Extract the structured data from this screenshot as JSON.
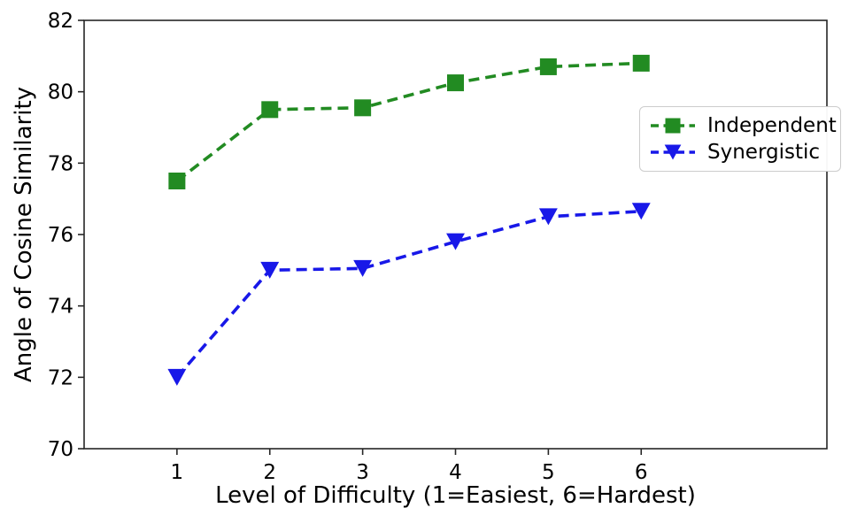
{
  "chart_data": {
    "type": "line",
    "x": [
      1,
      2,
      3,
      4,
      5,
      6
    ],
    "series": [
      {
        "name": "Independent",
        "values": [
          77.5,
          79.5,
          79.55,
          80.25,
          80.7,
          80.8
        ],
        "color": "#228B22",
        "marker": "square",
        "linestyle": "dashed"
      },
      {
        "name": "Synergistic",
        "values": [
          72.0,
          75.0,
          75.05,
          75.8,
          76.5,
          76.65
        ],
        "color": "#1818E8",
        "marker": "triangle-down",
        "linestyle": "dashed"
      }
    ],
    "title": "",
    "xlabel": "Level of Difficulty (1=Easiest, 6=Hardest)",
    "ylabel": "Angle of Cosine Similarity",
    "xlim": [
      0,
      8
    ],
    "ylim": [
      70,
      82
    ],
    "xticks": [
      1,
      2,
      3,
      4,
      5,
      6
    ],
    "yticks": [
      70,
      72,
      74,
      76,
      78,
      80,
      82
    ],
    "grid": false,
    "legend": {
      "position": "center-right",
      "entries": [
        "Independent",
        "Synergistic"
      ]
    },
    "axis_color": "#262626",
    "tick_label_color": "#000000"
  }
}
